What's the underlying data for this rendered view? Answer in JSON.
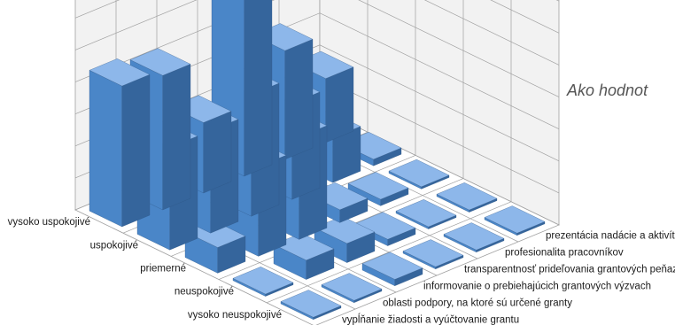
{
  "chart_data": {
    "type": "bar",
    "subtype": "3d-column",
    "title": "Ako hodnot",
    "rating_categories": [
      "vysoko uspokojivé",
      "uspokojivé",
      "priemerné",
      "neuspokojivé",
      "vysoko neuspokojivé"
    ],
    "aspects": [
      "vypĺňanie žiadosti a vyúčtovanie grantu",
      "oblasti podpory, na ktoré sú určené granty",
      "informovanie o prebiehajúcich grantových výzvach",
      "transparentnosť prideľovania grantových peňazí",
      "profesionalita pracovníkov",
      "prezentácia nadácie a aktivít na verejnosti"
    ],
    "series": [
      {
        "aspect": "vypĺňanie žiadosti a vyúčtovanie grantu",
        "values": [
          22,
          16,
          4,
          0,
          0
        ]
      },
      {
        "aspect": "oblasti podpory, na ktoré sú určené granty",
        "values": [
          21,
          16,
          14,
          3,
          0
        ]
      },
      {
        "aspect": "informovanie o prebiehajúcich grantových výzvach",
        "values": [
          11,
          19,
          16,
          3,
          1
        ]
      },
      {
        "aspect": "transparentnosť prideľovania grantových peňazí",
        "values": [
          33,
          15,
          2,
          1,
          0
        ]
      },
      {
        "aspect": "profesionalita pracovníkov",
        "values": [
          17,
          7,
          1,
          0,
          0
        ]
      },
      {
        "aspect": "prezentácia nadácie a aktivít na verejnosti",
        "values": [
          10,
          1,
          0,
          0,
          0
        ]
      }
    ],
    "colors": {
      "bar_front": "#4a86c8",
      "bar_top": "#8db7ea",
      "bar_side": "#35659c",
      "grid": "#a0a0a0",
      "wall": "#f2f2f2"
    },
    "grid": true,
    "legend": "none"
  }
}
